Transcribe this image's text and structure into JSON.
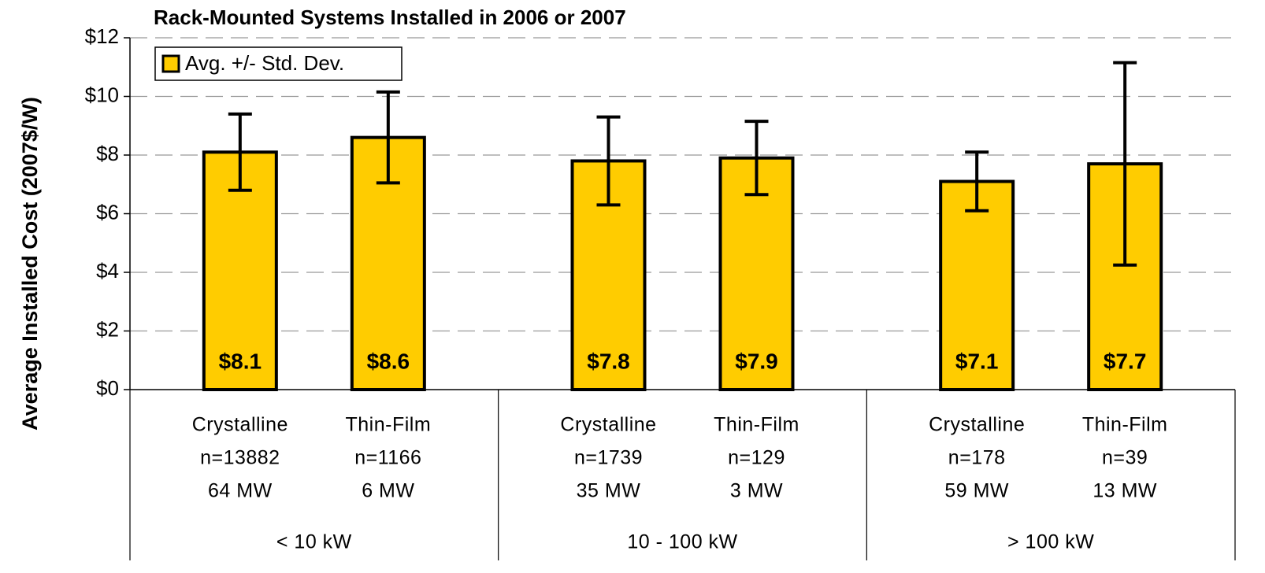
{
  "chart_data": {
    "type": "bar",
    "title": "Rack-Mounted Systems Installed in 2006 or 2007",
    "y_label": "Average Installed Cost (2007$/W)",
    "categories": [
      "Crystalline",
      "Thin-Film",
      "Crystalline",
      "Thin-Film",
      "Crystalline",
      "Thin-Film"
    ],
    "sample_sizes": [
      "n=13882",
      "n=1166",
      "n=1739",
      "n=129",
      "n=178",
      "n=39"
    ],
    "capacities": [
      "64 MW",
      "6 MW",
      "35 MW",
      "3 MW",
      "59 MW",
      "13 MW"
    ],
    "groups": [
      "< 10 kW",
      "10 - 100 kW",
      "> 100 kW"
    ],
    "series": [
      {
        "name": "Avg. +/- Std. Dev.",
        "color": "#ffcc00",
        "values": [
          8.1,
          8.6,
          7.8,
          7.9,
          7.1,
          7.7
        ],
        "value_labels": [
          "$8.1",
          "$8.6",
          "$7.8",
          "$7.9",
          "$7.1",
          "$7.7"
        ],
        "errors": [
          1.3,
          1.55,
          1.5,
          1.25,
          1.0,
          3.45
        ]
      }
    ],
    "ylim": [
      0,
      12
    ],
    "yticks": [
      {
        "value": 0,
        "label": "$0"
      },
      {
        "value": 2,
        "label": "$2"
      },
      {
        "value": 4,
        "label": "$4"
      },
      {
        "value": 6,
        "label": "$6"
      },
      {
        "value": 8,
        "label": "$8"
      },
      {
        "value": 10,
        "label": "$10"
      },
      {
        "value": 12,
        "label": "$12"
      }
    ],
    "grid": true,
    "legend": "top-left"
  }
}
